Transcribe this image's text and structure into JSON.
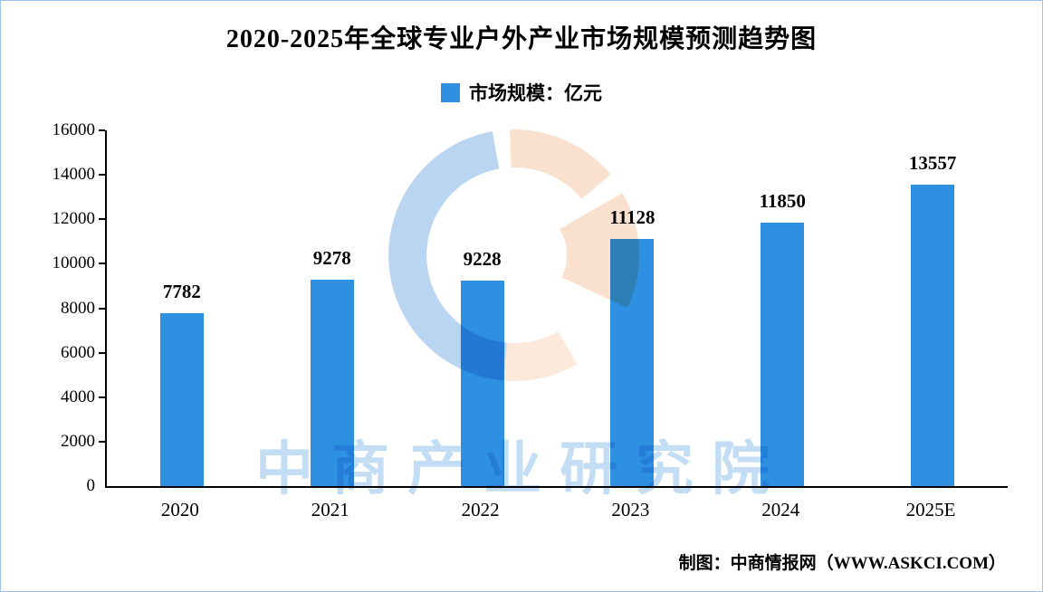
{
  "page": {
    "title": "2020-2025年全球专业户外产业市场规模预测趋势图",
    "footer": "制图：中商情报网（WWW.ASKCI.COM）",
    "watermark_text": "中商产业研究院"
  },
  "legend": {
    "label": "市场规模：亿元",
    "color": "#2E90E0"
  },
  "chart_data": {
    "type": "bar",
    "title": "2020-2025年全球专业户外产业市场规模预测趋势图",
    "categories": [
      "2020",
      "2021",
      "2022",
      "2023",
      "2024",
      "2025E"
    ],
    "values": [
      7782,
      9278,
      9228,
      11128,
      11850,
      13557
    ],
    "series_name": "市场规模：亿元",
    "unit": "亿元",
    "ylim": [
      0,
      16000
    ],
    "yticks": [
      0,
      2000,
      4000,
      6000,
      8000,
      10000,
      12000,
      14000,
      16000
    ],
    "bar_color": "#2E90E0",
    "grid": false,
    "legend_position": "top",
    "data_labels": true
  }
}
